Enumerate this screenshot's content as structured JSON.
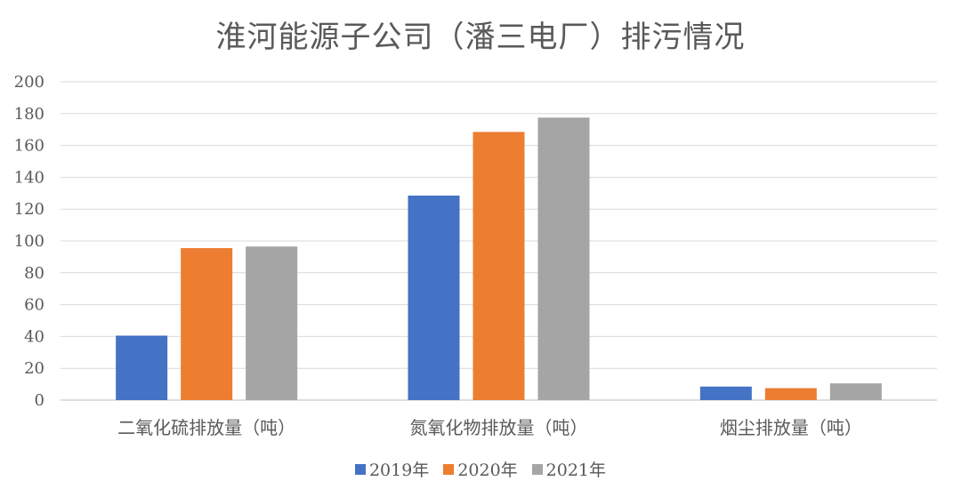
{
  "chart_data": {
    "type": "bar",
    "title": "淮河能源子公司（潘三电厂）排污情况",
    "xlabel": "",
    "ylabel": "",
    "categories": [
      "二氧化硫排放量（吨）",
      "氮氧化物排放量（吨）",
      "烟尘排放量（吨）"
    ],
    "series": [
      {
        "name": "2019年",
        "color": "#4472C4",
        "values": [
          40.5,
          128.5,
          8.5
        ]
      },
      {
        "name": "2020年",
        "color": "#ED7D31",
        "values": [
          95.5,
          168.5,
          7.5
        ]
      },
      {
        "name": "2021年",
        "color": "#A5A5A5",
        "values": [
          96.5,
          177.5,
          10.5
        ]
      }
    ],
    "ylim": [
      0,
      200
    ],
    "yticks": [
      0,
      20,
      40,
      60,
      80,
      100,
      120,
      140,
      160,
      180,
      200
    ],
    "grid": true,
    "legend_position": "bottom"
  }
}
